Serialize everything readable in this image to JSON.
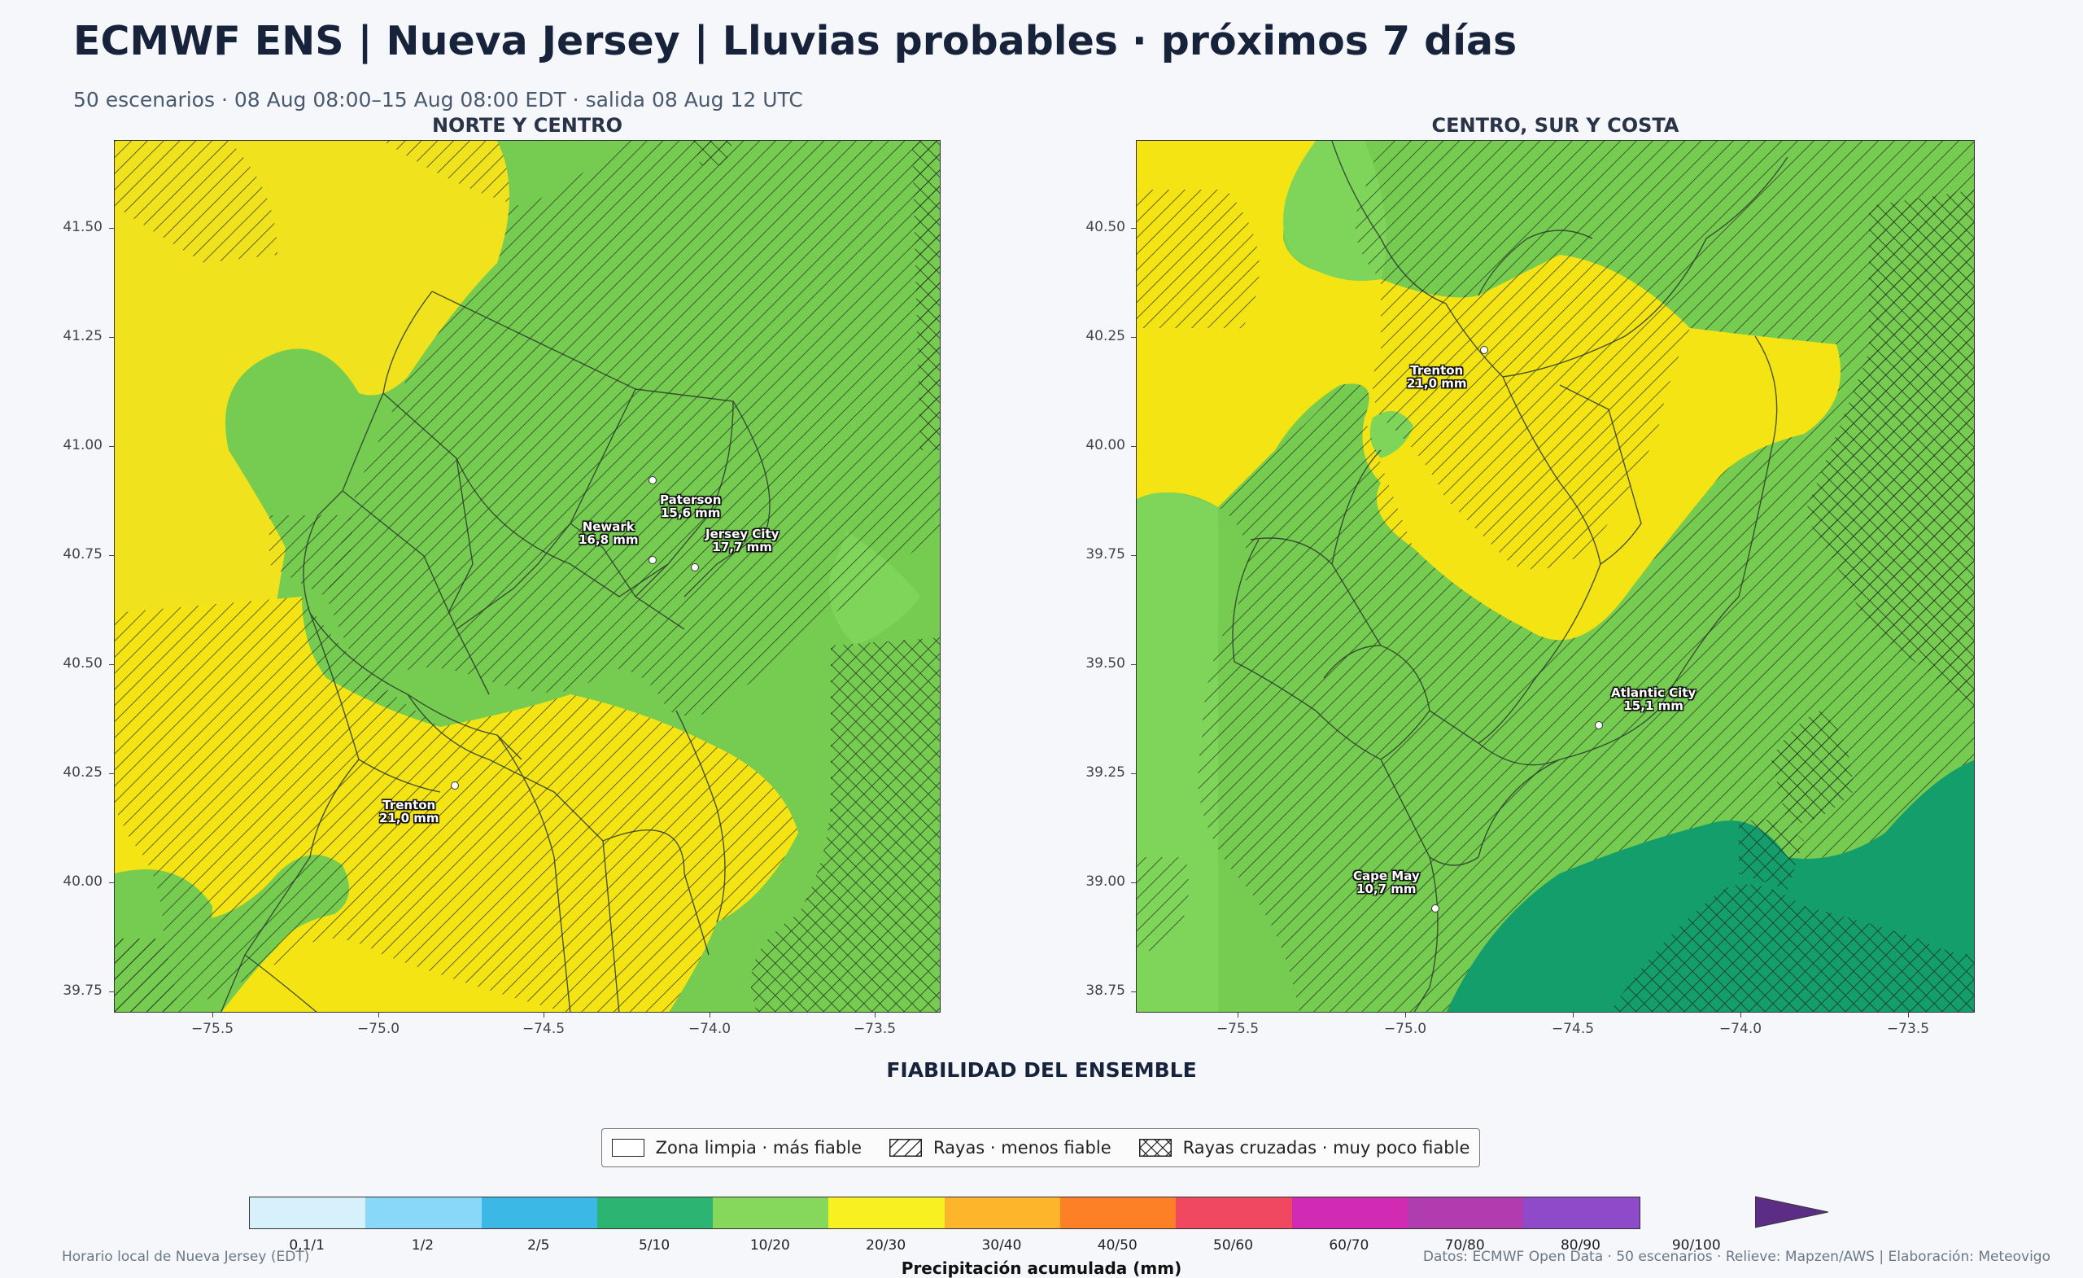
{
  "header": {
    "title": "ECMWF ENS | Nueva Jersey | Lluvias probables · próximos 7 días",
    "subtitle": "50 escenarios · 08 Aug 08:00–15 Aug 08:00 EDT · salida 08 Aug 12 UTC"
  },
  "panels": [
    {
      "title": "NORTE Y CENTRO",
      "yticks": [
        "41.50",
        "41.25",
        "41.00",
        "40.75",
        "40.50",
        "40.25",
        "40.00",
        "39.75"
      ],
      "xticks": [
        "−75.5",
        "−75.0",
        "−74.5",
        "−74.0",
        "−73.5"
      ],
      "cities": [
        {
          "name": "Paterson",
          "value": "15,6 mm"
        },
        {
          "name": "Newark",
          "value": "16,8 mm"
        },
        {
          "name": "Jersey City",
          "value": "17,7 mm"
        },
        {
          "name": "Trenton",
          "value": "21,0 mm"
        }
      ]
    },
    {
      "title": "CENTRO, SUR Y COSTA",
      "yticks": [
        "40.50",
        "40.25",
        "40.00",
        "39.75",
        "39.50",
        "39.25",
        "39.00",
        "38.75"
      ],
      "xticks": [
        "−75.5",
        "−75.0",
        "−74.5",
        "−74.0",
        "−73.5"
      ],
      "cities": [
        {
          "name": "Trenton",
          "value": "21,0 mm"
        },
        {
          "name": "Atlantic City",
          "value": "15,1 mm"
        },
        {
          "name": "Cape May",
          "value": "10,7 mm"
        }
      ]
    }
  ],
  "section_title": "FIABILIDAD DEL ENSEMBLE",
  "legend": {
    "clean": "Zona limpia · más fiable",
    "hatch": "Rayas · menos fiable",
    "cross": "Rayas cruzadas · muy poco fiable"
  },
  "colorbar": {
    "label": "Precipitación acumulada (mm)",
    "ticks": [
      "0,1/1",
      "1/2",
      "2/5",
      "5/10",
      "10/20",
      "20/30",
      "30/40",
      "40/50",
      "50/60",
      "60/70",
      "70/80",
      "80/90",
      "90/100"
    ],
    "colors": [
      "#d6f1fc",
      "#8ad8f9",
      "#3cb8e6",
      "#2bb472",
      "#86d85c",
      "#f8f020",
      "#fdb52b",
      "#fd7f26",
      "#f04860",
      "#d12bb4",
      "#b03cb0",
      "#8e4ac8",
      "#5b2d85"
    ]
  },
  "footer": {
    "left": "Horario local de Nueva Jersey (EDT)",
    "right": "Datos: ECMWF Open Data · 50 escenarios · Relieve: Mapzen/AWS | Elaboración: Meteovigo"
  }
}
